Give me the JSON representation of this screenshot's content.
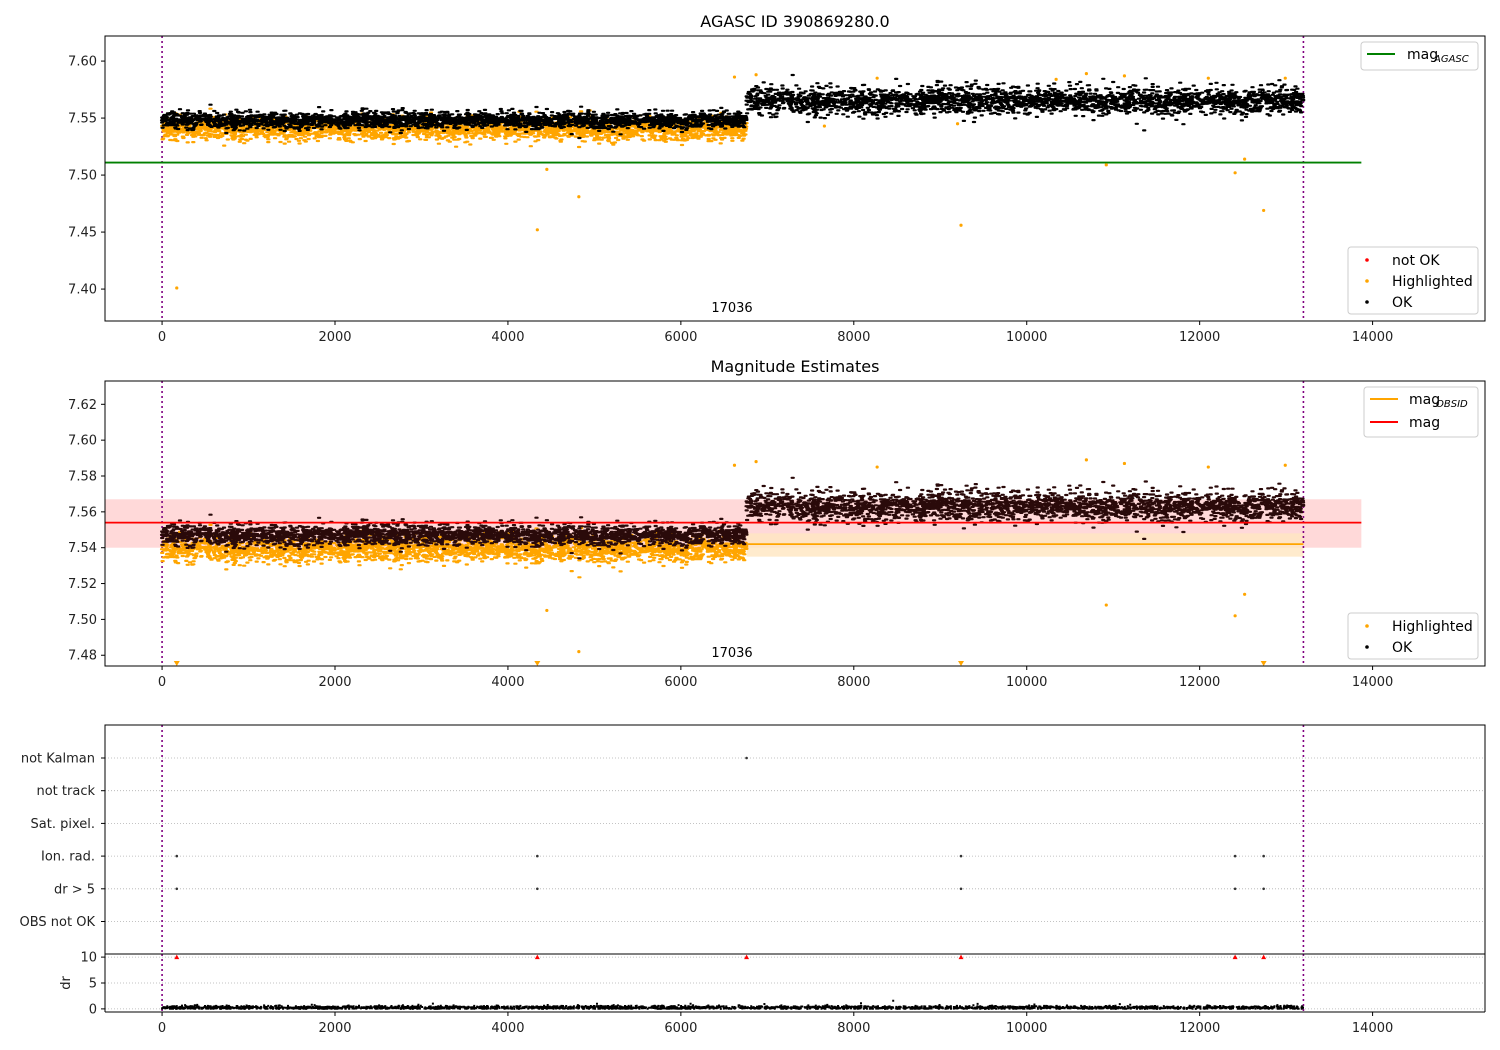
{
  "chart_data": [
    {
      "type": "scatter",
      "title": "AGASC ID 390869280.0",
      "xlim": [
        -660,
        15300
      ],
      "ylim": [
        7.372,
        7.622
      ],
      "xticks": [
        "0",
        "2000",
        "4000",
        "6000",
        "8000",
        "10000",
        "12000",
        "14000"
      ],
      "yticks": [
        "7.40",
        "7.45",
        "7.50",
        "7.55",
        "7.60"
      ],
      "obsid_label": "17036",
      "obs_boundaries_x": [
        0,
        13200
      ],
      "hlines": [
        {
          "name": "mag",
          "subscript": "AGASC",
          "y": 7.511,
          "x": [
            -660,
            13870
          ],
          "color": "#008000"
        }
      ],
      "series": [
        {
          "name": "not OK",
          "color": "#ff0000",
          "points": []
        },
        {
          "name": "Highlighted",
          "color": "#ffa500",
          "bands": [
            {
              "x": [
                0,
                6760
              ],
              "center": 7.54,
              "spread": 0.008
            }
          ],
          "points": [
            [
              170,
              7.401
            ],
            [
              4340,
              7.452
            ],
            [
              4450,
              7.505
            ],
            [
              4820,
              7.481
            ],
            [
              6620,
              7.586
            ],
            [
              6870,
              7.588
            ],
            [
              7660,
              7.543
            ],
            [
              8270,
              7.585
            ],
            [
              9200,
              7.545
            ],
            [
              9240,
              7.456
            ],
            [
              10340,
              7.584
            ],
            [
              10690,
              7.589
            ],
            [
              10920,
              7.509
            ],
            [
              11130,
              7.587
            ],
            [
              12100,
              7.585
            ],
            [
              12410,
              7.502
            ],
            [
              12520,
              7.514
            ],
            [
              12740,
              7.469
            ],
            [
              12990,
              7.585
            ]
          ]
        },
        {
          "name": "OK",
          "color": "#000000",
          "bands": [
            {
              "x": [
                0,
                6760
              ],
              "center": 7.548,
              "spread": 0.006
            },
            {
              "x": [
                6760,
                13200
              ],
              "center": 7.565,
              "spread": 0.01
            }
          ],
          "points": []
        }
      ],
      "legend_top": {
        "position": "upper right",
        "entries": [
          {
            "label": "mag",
            "subscript": "AGASC",
            "color": "#008000"
          }
        ]
      },
      "legend_bottom": {
        "position": "lower right",
        "entries": [
          "not OK",
          "Highlighted",
          "OK"
        ]
      }
    },
    {
      "type": "scatter",
      "title": "Magnitude Estimates",
      "xlim": [
        -660,
        15300
      ],
      "ylim": [
        7.474,
        7.633
      ],
      "xticks": [
        "0",
        "2000",
        "4000",
        "6000",
        "8000",
        "10000",
        "12000",
        "14000"
      ],
      "yticks": [
        "7.48",
        "7.50",
        "7.52",
        "7.54",
        "7.56",
        "7.58",
        "7.60",
        "7.62"
      ],
      "obsid_label": "17036",
      "obs_boundaries_x": [
        0,
        13200
      ],
      "shaded_bands": [
        {
          "x": [
            -660,
            13870
          ],
          "y": [
            7.54,
            7.567
          ],
          "color": "#ffd0d0"
        },
        {
          "x": [
            6760,
            13200
          ],
          "y": [
            7.535,
            7.548
          ],
          "color": "#ffe6c0"
        }
      ],
      "lines": [
        {
          "name": "mag",
          "subscript": "OBSID",
          "color": "#ffa500",
          "x": [
            6760,
            13200
          ],
          "y": 7.542
        },
        {
          "name": "mag",
          "color": "#ff0000",
          "x": [
            -660,
            13870
          ],
          "y": 7.554
        }
      ],
      "series": [
        {
          "name": "Highlighted",
          "color": "#ffa500",
          "bands": [
            {
              "x": [
                0,
                6760
              ],
              "center": 7.539,
              "spread": 0.006
            }
          ],
          "points": [
            [
              4450,
              7.505
            ],
            [
              4820,
              7.482
            ],
            [
              6620,
              7.586
            ],
            [
              6870,
              7.588
            ],
            [
              8270,
              7.585
            ],
            [
              10690,
              7.589
            ],
            [
              10920,
              7.508
            ],
            [
              11130,
              7.587
            ],
            [
              12100,
              7.585
            ],
            [
              12410,
              7.502
            ],
            [
              12520,
              7.514
            ],
            [
              12990,
              7.586
            ]
          ],
          "clipped_x": [
            170,
            4340,
            9240,
            12740
          ]
        },
        {
          "name": "OK",
          "color": "#000000",
          "bands": [
            {
              "x": [
                0,
                6760
              ],
              "center": 7.547,
              "spread": 0.005
            },
            {
              "x": [
                6760,
                13200
              ],
              "center": 7.563,
              "spread": 0.007
            }
          ],
          "points": []
        }
      ],
      "legend_top": {
        "position": "upper right",
        "entries": [
          {
            "label": "mag",
            "subscript": "OBSID",
            "color": "#ffa500"
          },
          {
            "label": "mag",
            "color": "#ff0000"
          }
        ]
      },
      "legend_bottom": {
        "position": "lower right",
        "entries": [
          "Highlighted",
          "OK"
        ]
      }
    },
    {
      "type": "scatter",
      "title": "",
      "xlim": [
        -660,
        15300
      ],
      "categories": [
        "not Kalman",
        "not track",
        "Sat. pixel.",
        "Ion. rad.",
        "dr > 5",
        "OBS not OK"
      ],
      "flags": [
        {
          "category": "not Kalman",
          "x": [
            6760
          ]
        },
        {
          "category": "Ion. rad.",
          "x": [
            170,
            4340,
            9240,
            12410,
            12740
          ]
        },
        {
          "category": "dr > 5",
          "x": [
            170,
            4340,
            9240,
            12410,
            12740
          ]
        }
      ],
      "obs_boundaries_x": [
        0,
        13200
      ]
    },
    {
      "type": "scatter",
      "title": "",
      "ylabel": "dr",
      "xlim": [
        -660,
        15300
      ],
      "ylim": [
        -0.6,
        10.6
      ],
      "xticks": [
        "0",
        "2000",
        "4000",
        "6000",
        "8000",
        "10000",
        "12000",
        "14000"
      ],
      "yticks": [
        "0",
        "5",
        "10"
      ],
      "clipped_x": [
        170,
        4340,
        6760,
        9240,
        12410,
        12740
      ],
      "band": {
        "x": [
          0,
          13200
        ],
        "center": 0.25,
        "spread": 0.25
      },
      "obs_boundaries_x": [
        0,
        13200
      ]
    }
  ]
}
